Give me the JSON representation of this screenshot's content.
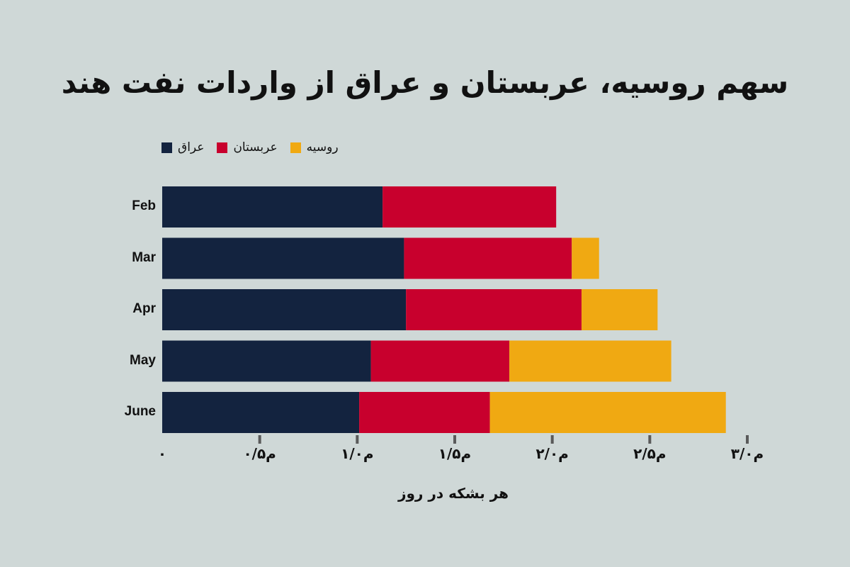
{
  "chart_data": {
    "type": "bar",
    "orientation": "horizontal",
    "stacked": true,
    "title": "سهم روسیه، عربستان و عراق از واردات نفت هند",
    "xlabel": "هر بشکه در روز",
    "categories": [
      "Feb",
      "Mar",
      "Apr",
      "May",
      "June"
    ],
    "series": [
      {
        "name": "عراق",
        "color": "#13233f",
        "values": [
          1.13,
          1.24,
          1.25,
          1.07,
          1.01
        ]
      },
      {
        "name": "عربستان",
        "color": "#c8002d",
        "values": [
          0.89,
          0.86,
          0.9,
          0.71,
          0.67
        ]
      },
      {
        "name": "روسیه",
        "color": "#f0a912",
        "values": [
          0.0,
          0.14,
          0.39,
          0.83,
          1.21
        ]
      }
    ],
    "xlim": [
      0,
      3.0
    ],
    "ticks": [
      0,
      0.5,
      1.0,
      1.5,
      2.0,
      2.5,
      3.0
    ],
    "tick_labels": [
      "۰",
      "۰/۵م",
      "۱/۰م",
      "۱/۵م",
      "۲/۰م",
      "۲/۵م",
      "۳/۰م"
    ],
    "grid": false,
    "legend_position": "top-left"
  },
  "colors": {
    "background": "#cfd8d7",
    "tick_mark": "#5a5a5a"
  }
}
